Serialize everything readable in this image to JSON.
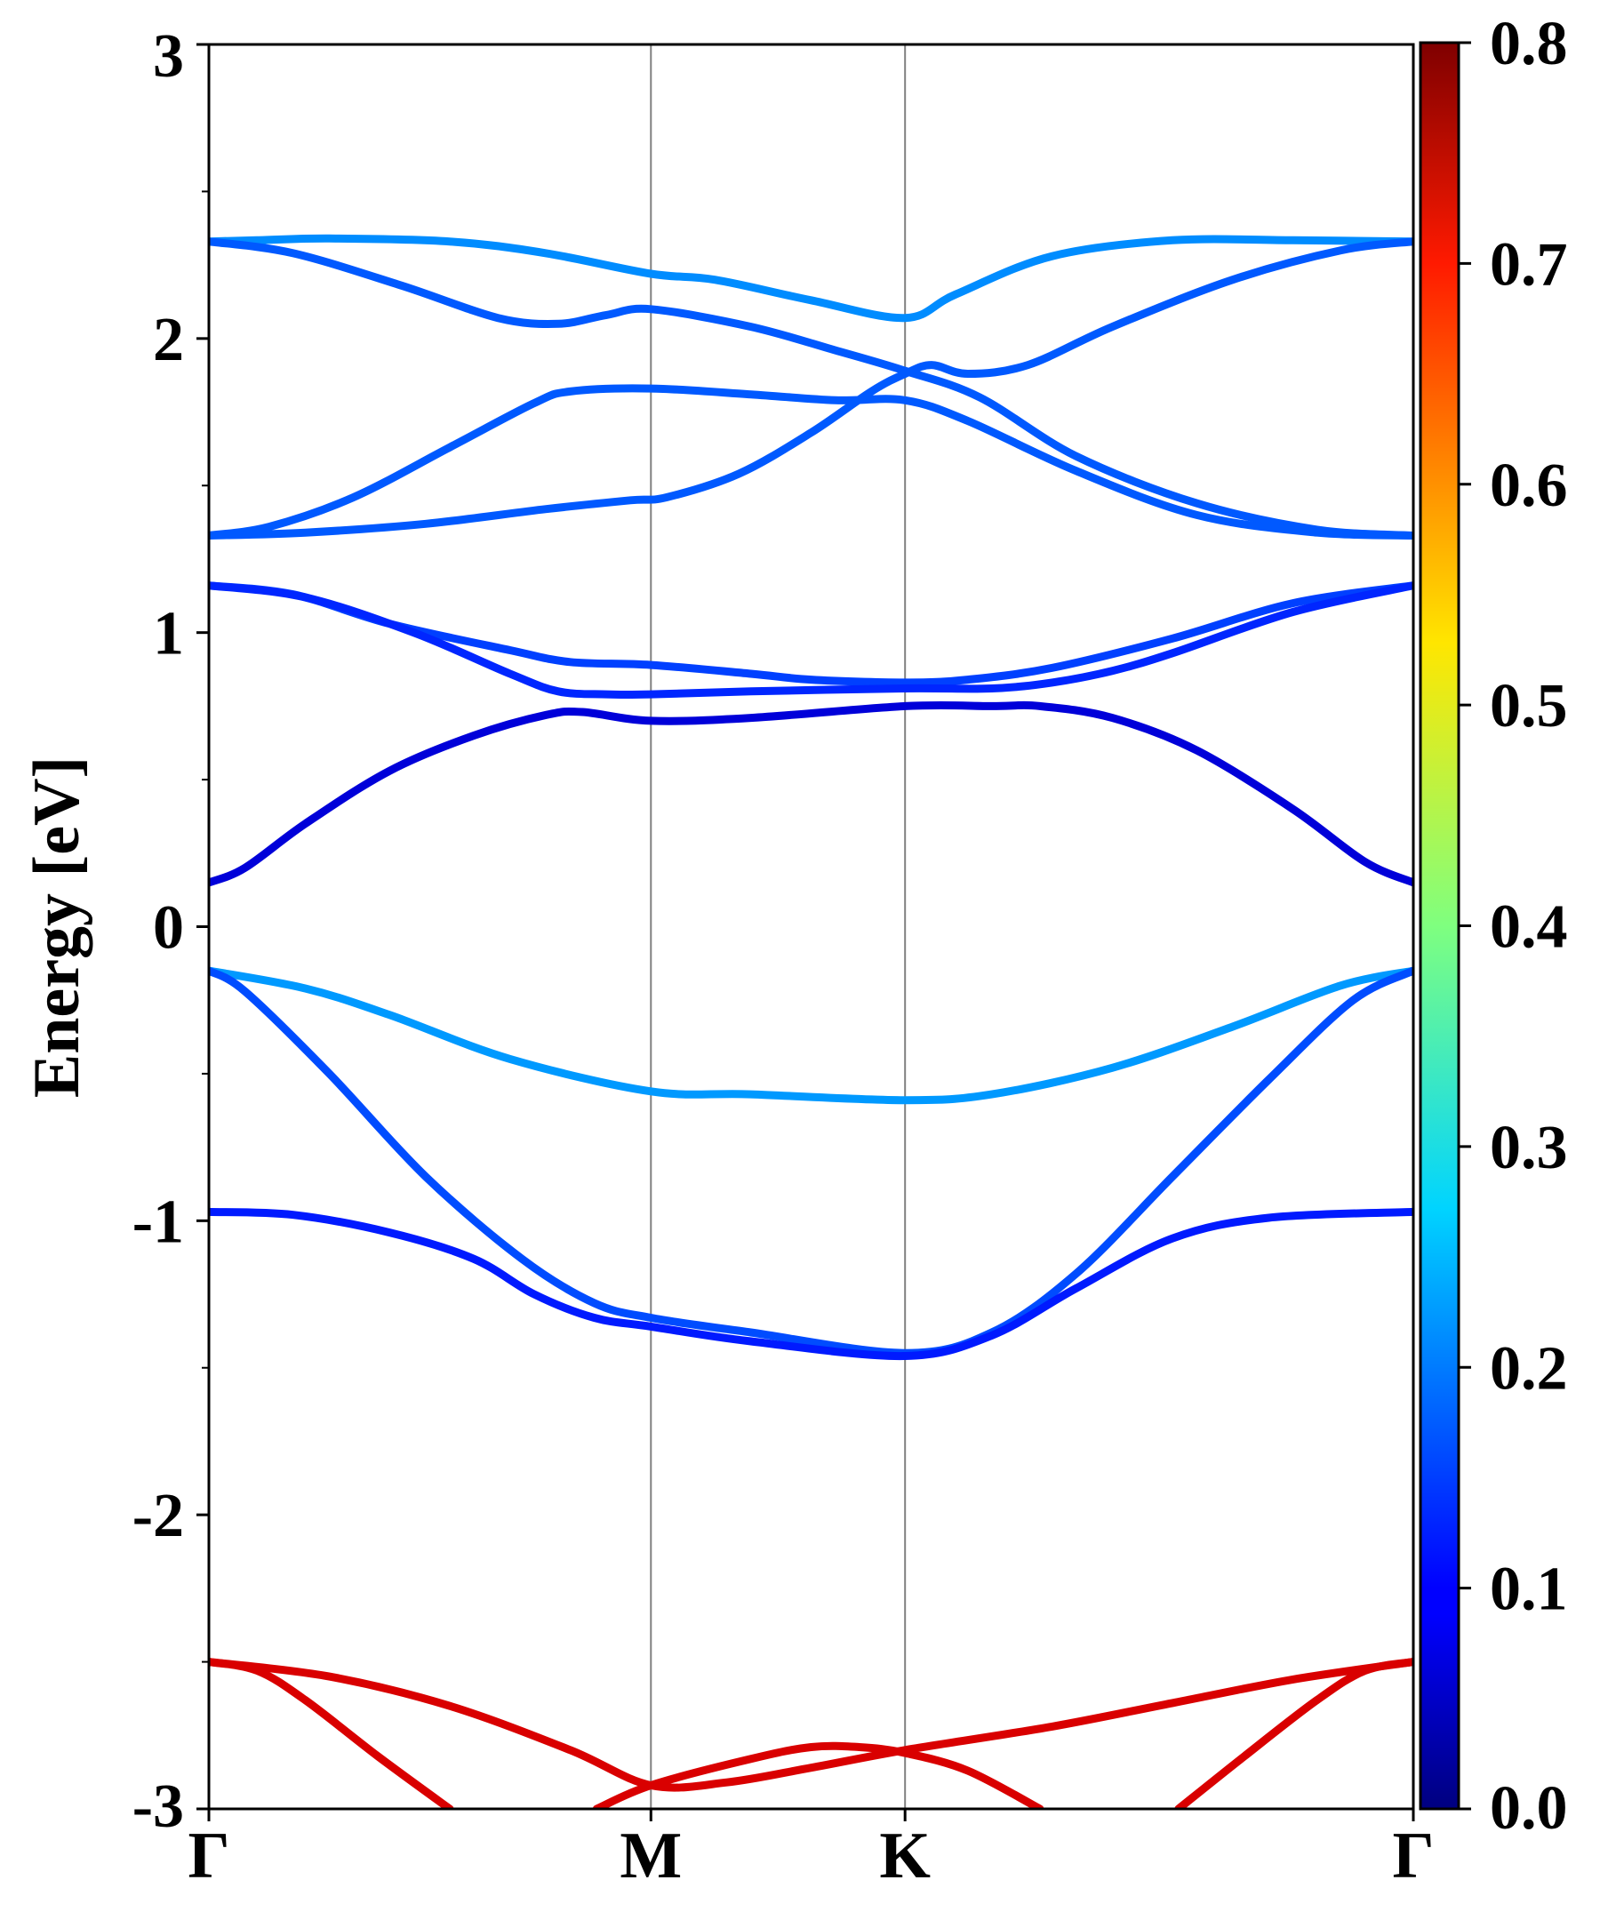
{
  "chart_data": {
    "type": "line",
    "title": "",
    "xlabel": "",
    "ylabel": "Energy [eV]",
    "ylim": [
      -3,
      3
    ],
    "y_ticks": [
      {
        "value": 3,
        "label": "3"
      },
      {
        "value": 2,
        "label": "2"
      },
      {
        "value": 1,
        "label": "1"
      },
      {
        "value": 0,
        "label": "0"
      },
      {
        "value": -1,
        "label": "-1"
      },
      {
        "value": -2,
        "label": "-2"
      },
      {
        "value": -3,
        "label": "-3"
      }
    ],
    "y_minor_ticks": [
      2.5,
      1.5,
      0.5,
      -0.5,
      -1.5,
      -2.5
    ],
    "x_points": [
      {
        "label": "Γ",
        "x": 0.0
      },
      {
        "label": "M",
        "x": 0.367
      },
      {
        "label": "K",
        "x": 0.578
      },
      {
        "label": "Γ",
        "x": 1.0
      }
    ],
    "grid": "vertical lines at high-symmetry points",
    "colorbar": {
      "min": 0.0,
      "max": 0.8,
      "colormap": "jet",
      "ticks": [
        {
          "value": 0.0,
          "label": "0.0"
        },
        {
          "value": 0.1,
          "label": "0.1"
        },
        {
          "value": 0.2,
          "label": "0.2"
        },
        {
          "value": 0.3,
          "label": "0.3"
        },
        {
          "value": 0.4,
          "label": "0.4"
        },
        {
          "value": 0.5,
          "label": "0.5"
        },
        {
          "value": 0.6,
          "label": "0.6"
        },
        {
          "value": 0.7,
          "label": "0.7"
        },
        {
          "value": 0.8,
          "label": "0.8"
        }
      ]
    },
    "series": [
      {
        "weight": 0.21,
        "points": [
          [
            0,
            2.33
          ],
          [
            0.04,
            2.334
          ],
          [
            0.1,
            2.34
          ],
          [
            0.2,
            2.33
          ],
          [
            0.28,
            2.29
          ],
          [
            0.367,
            2.22
          ],
          [
            0.42,
            2.2
          ],
          [
            0.5,
            2.13
          ],
          [
            0.578,
            2.07
          ],
          [
            0.62,
            2.15
          ],
          [
            0.7,
            2.28
          ],
          [
            0.8,
            2.334
          ],
          [
            0.9,
            2.334
          ],
          [
            1,
            2.33
          ]
        ]
      },
      {
        "weight": 0.17,
        "points": [
          [
            0,
            2.33
          ],
          [
            0.07,
            2.29
          ],
          [
            0.16,
            2.18
          ],
          [
            0.24,
            2.07
          ],
          [
            0.29,
            2.05
          ],
          [
            0.33,
            2.08
          ],
          [
            0.367,
            2.1
          ],
          [
            0.45,
            2.04
          ],
          [
            0.52,
            1.96
          ],
          [
            0.578,
            1.89
          ],
          [
            0.64,
            1.8
          ],
          [
            0.72,
            1.6
          ],
          [
            0.82,
            1.44
          ],
          [
            0.92,
            1.35
          ],
          [
            1,
            1.33
          ]
        ]
      },
      {
        "weight": 0.17,
        "points": [
          [
            0,
            1.33
          ],
          [
            0.05,
            1.36
          ],
          [
            0.12,
            1.46
          ],
          [
            0.2,
            1.63
          ],
          [
            0.27,
            1.78
          ],
          [
            0.3,
            1.82
          ],
          [
            0.367,
            1.83
          ],
          [
            0.45,
            1.81
          ],
          [
            0.52,
            1.79
          ],
          [
            0.578,
            1.79
          ],
          [
            0.63,
            1.72
          ],
          [
            0.72,
            1.55
          ],
          [
            0.82,
            1.4
          ],
          [
            0.92,
            1.34
          ],
          [
            1,
            1.33
          ]
        ]
      },
      {
        "weight": 0.17,
        "points": [
          [
            0,
            1.33
          ],
          [
            0.08,
            1.34
          ],
          [
            0.18,
            1.37
          ],
          [
            0.28,
            1.42
          ],
          [
            0.35,
            1.45
          ],
          [
            0.38,
            1.46
          ],
          [
            0.44,
            1.54
          ],
          [
            0.5,
            1.68
          ],
          [
            0.55,
            1.82
          ],
          [
            0.578,
            1.88
          ],
          [
            0.6,
            1.91
          ],
          [
            0.63,
            1.88
          ],
          [
            0.68,
            1.91
          ],
          [
            0.75,
            2.04
          ],
          [
            0.85,
            2.2
          ],
          [
            0.94,
            2.3
          ],
          [
            1,
            2.33
          ]
        ]
      },
      {
        "weight": 0.15,
        "points": [
          [
            0,
            1.16
          ],
          [
            0.07,
            1.13
          ],
          [
            0.15,
            1.03
          ],
          [
            0.25,
            0.94
          ],
          [
            0.3,
            0.9
          ],
          [
            0.367,
            0.89
          ],
          [
            0.45,
            0.86
          ],
          [
            0.5,
            0.84
          ],
          [
            0.578,
            0.83
          ],
          [
            0.63,
            0.84
          ],
          [
            0.7,
            0.88
          ],
          [
            0.8,
            0.98
          ],
          [
            0.9,
            1.1
          ],
          [
            1,
            1.16
          ]
        ]
      },
      {
        "weight": 0.13,
        "points": [
          [
            0,
            1.16
          ],
          [
            0.08,
            1.12
          ],
          [
            0.17,
            1.0
          ],
          [
            0.25,
            0.86
          ],
          [
            0.29,
            0.8
          ],
          [
            0.33,
            0.79
          ],
          [
            0.367,
            0.79
          ],
          [
            0.45,
            0.8
          ],
          [
            0.578,
            0.81
          ],
          [
            0.65,
            0.81
          ],
          [
            0.7,
            0.83
          ],
          [
            0.75,
            0.87
          ],
          [
            0.8,
            0.93
          ],
          [
            0.9,
            1.07
          ],
          [
            1,
            1.16
          ]
        ]
      },
      {
        "weight": 0.07,
        "points": [
          [
            0,
            0.15
          ],
          [
            0.03,
            0.2
          ],
          [
            0.08,
            0.35
          ],
          [
            0.15,
            0.53
          ],
          [
            0.22,
            0.65
          ],
          [
            0.28,
            0.72
          ],
          [
            0.31,
            0.73
          ],
          [
            0.367,
            0.7
          ],
          [
            0.45,
            0.71
          ],
          [
            0.578,
            0.75
          ],
          [
            0.65,
            0.75
          ],
          [
            0.69,
            0.75
          ],
          [
            0.75,
            0.71
          ],
          [
            0.82,
            0.6
          ],
          [
            0.9,
            0.4
          ],
          [
            0.96,
            0.22
          ],
          [
            1,
            0.15
          ]
        ]
      },
      {
        "weight": 0.22,
        "points": [
          [
            0,
            -0.15
          ],
          [
            0.08,
            -0.21
          ],
          [
            0.15,
            -0.3
          ],
          [
            0.25,
            -0.45
          ],
          [
            0.367,
            -0.56
          ],
          [
            0.45,
            -0.57
          ],
          [
            0.578,
            -0.59
          ],
          [
            0.65,
            -0.57
          ],
          [
            0.75,
            -0.48
          ],
          [
            0.85,
            -0.34
          ],
          [
            0.94,
            -0.2
          ],
          [
            1,
            -0.15
          ]
        ]
      },
      {
        "weight": 0.16,
        "points": [
          [
            0,
            -0.15
          ],
          [
            0.03,
            -0.22
          ],
          [
            0.1,
            -0.5
          ],
          [
            0.18,
            -0.85
          ],
          [
            0.26,
            -1.13
          ],
          [
            0.32,
            -1.28
          ],
          [
            0.367,
            -1.33
          ],
          [
            0.45,
            -1.38
          ],
          [
            0.578,
            -1.45
          ],
          [
            0.65,
            -1.38
          ],
          [
            0.72,
            -1.18
          ],
          [
            0.8,
            -0.85
          ],
          [
            0.88,
            -0.52
          ],
          [
            0.95,
            -0.25
          ],
          [
            1,
            -0.15
          ]
        ]
      },
      {
        "weight": 0.12,
        "points": [
          [
            0,
            -0.97
          ],
          [
            0.07,
            -0.98
          ],
          [
            0.15,
            -1.04
          ],
          [
            0.22,
            -1.13
          ],
          [
            0.27,
            -1.25
          ],
          [
            0.32,
            -1.33
          ],
          [
            0.367,
            -1.36
          ],
          [
            0.45,
            -1.41
          ],
          [
            0.578,
            -1.46
          ],
          [
            0.65,
            -1.39
          ],
          [
            0.72,
            -1.23
          ],
          [
            0.8,
            -1.06
          ],
          [
            0.88,
            -0.99
          ],
          [
            1,
            -0.97
          ]
        ]
      },
      {
        "weight": 0.73,
        "points": [
          [
            0,
            -2.5
          ],
          [
            0.1,
            -2.55
          ],
          [
            0.2,
            -2.65
          ],
          [
            0.3,
            -2.8
          ],
          [
            0.367,
            -2.92
          ],
          [
            0.43,
            -2.91
          ],
          [
            0.5,
            -2.86
          ],
          [
            0.578,
            -2.8
          ],
          [
            0.7,
            -2.72
          ],
          [
            0.8,
            -2.64
          ],
          [
            0.9,
            -2.56
          ],
          [
            1,
            -2.5
          ]
        ]
      },
      {
        "weight": 0.73,
        "points": [
          [
            0,
            -2.5
          ],
          [
            0.04,
            -2.53
          ],
          [
            0.08,
            -2.63
          ],
          [
            0.14,
            -2.82
          ],
          [
            0.2,
            -3.0
          ]
        ]
      },
      {
        "weight": 0.73,
        "points": [
          [
            0.322,
            -3.0
          ],
          [
            0.367,
            -2.92
          ],
          [
            0.45,
            -2.83
          ],
          [
            0.5,
            -2.79
          ],
          [
            0.54,
            -2.79
          ],
          [
            0.578,
            -2.81
          ],
          [
            0.63,
            -2.87
          ],
          [
            0.69,
            -3.0
          ]
        ]
      },
      {
        "weight": 0.73,
        "points": [
          [
            0.805,
            -3.0
          ],
          [
            0.86,
            -2.82
          ],
          [
            0.92,
            -2.63
          ],
          [
            0.96,
            -2.53
          ],
          [
            1,
            -2.5
          ]
        ]
      }
    ]
  }
}
